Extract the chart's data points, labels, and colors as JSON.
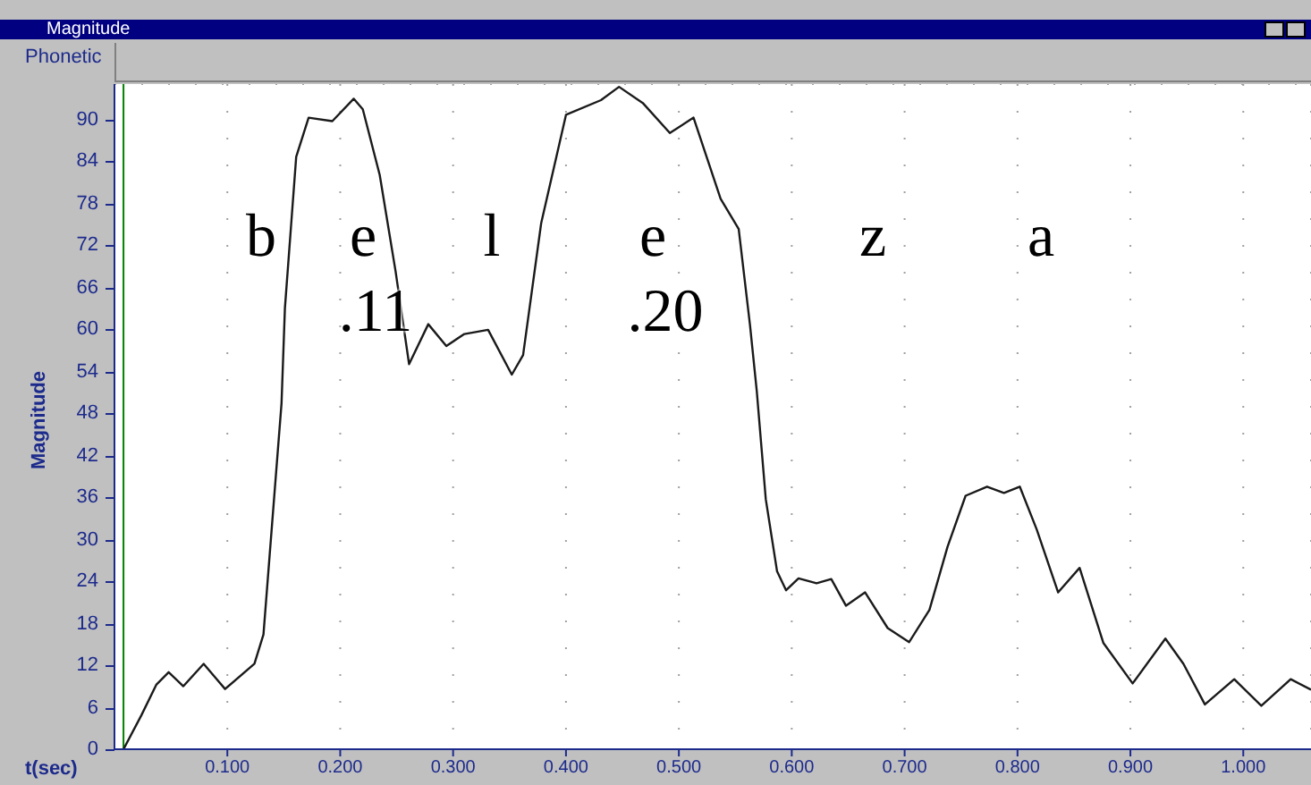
{
  "chart_data": {
    "type": "line",
    "title": "Magnitude",
    "subtitle": "Phonetic",
    "xlabel": "t(sec)",
    "ylabel": "Magnitude",
    "x": [
      0.008,
      0.024,
      0.037,
      0.048,
      0.061,
      0.079,
      0.098,
      0.124,
      0.132,
      0.141,
      0.148,
      0.151,
      0.161,
      0.172,
      0.193,
      0.212,
      0.22,
      0.235,
      0.249,
      0.261,
      0.278,
      0.294,
      0.31,
      0.331,
      0.352,
      0.362,
      0.378,
      0.4,
      0.431,
      0.447,
      0.468,
      0.492,
      0.513,
      0.537,
      0.553,
      0.563,
      0.569,
      0.577,
      0.587,
      0.595,
      0.606,
      0.622,
      0.635,
      0.648,
      0.665,
      0.685,
      0.704,
      0.722,
      0.738,
      0.754,
      0.773,
      0.788,
      0.802,
      0.817,
      0.836,
      0.855,
      0.876,
      0.902,
      0.931,
      0.947,
      0.966,
      0.992,
      1.016,
      1.042,
      1.06
    ],
    "series": [
      {
        "color": "#1a1a1a",
        "values": [
          0,
          4.9,
          9.2,
          11,
          9,
          12.2,
          8.6,
          12.2,
          16.4,
          35,
          49.4,
          63,
          84.6,
          90.2,
          89.7,
          92.9,
          91.4,
          82,
          68.3,
          55,
          60.7,
          57.6,
          59.3,
          59.9,
          53.5,
          56.3,
          75.1,
          90.6,
          92.7,
          94.6,
          92.3,
          88,
          90.2,
          78.6,
          74.3,
          60.6,
          51.2,
          35.7,
          25.4,
          22.7,
          24.4,
          23.7,
          24.3,
          20.5,
          22.4,
          17.3,
          15.3,
          19.9,
          28.9,
          36.2,
          37.5,
          36.6,
          37.5,
          31.4,
          22.4,
          25.9,
          15.2,
          9.4,
          15.8,
          12.2,
          6.4,
          10,
          6.2,
          10,
          8.5
        ]
      }
    ],
    "xlim": [
      0,
      1.06
    ],
    "ylim": [
      0,
      95
    ],
    "xticks": [
      {
        "value": 0.1,
        "label": "0.100"
      },
      {
        "value": 0.2,
        "label": "0.200"
      },
      {
        "value": 0.3,
        "label": "0.300"
      },
      {
        "value": 0.4,
        "label": "0.400"
      },
      {
        "value": 0.5,
        "label": "0.500"
      },
      {
        "value": 0.6,
        "label": "0.600"
      },
      {
        "value": 0.7,
        "label": "0.700"
      },
      {
        "value": 0.8,
        "label": "0.800"
      },
      {
        "value": 0.9,
        "label": "0.900"
      },
      {
        "value": 1.0,
        "label": "1.000"
      }
    ],
    "yticks": [
      0,
      6,
      12,
      18,
      24,
      30,
      36,
      42,
      48,
      54,
      60,
      66,
      72,
      78,
      84,
      90
    ],
    "grid": true,
    "line_style": "solid",
    "marker": "none",
    "legend": false,
    "ref_lines": [
      {
        "axis": "x",
        "value": 0.008,
        "color": "#008000"
      }
    ],
    "annotations": [
      "b",
      "e",
      "l",
      "e",
      "z",
      "a",
      ".11",
      ".20"
    ]
  }
}
